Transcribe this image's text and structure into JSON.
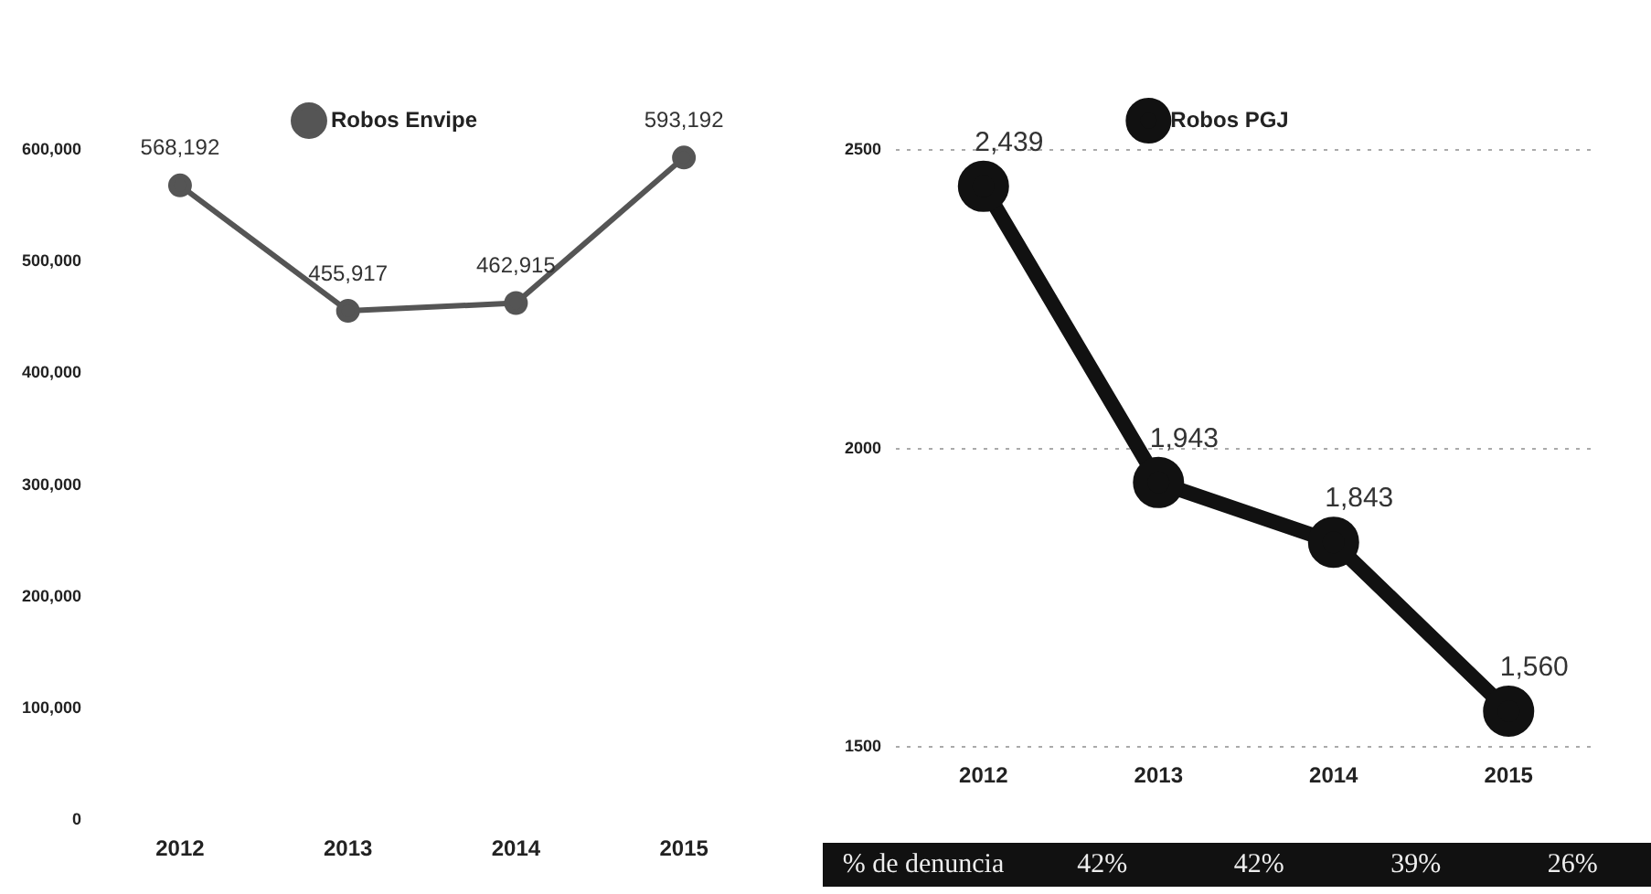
{
  "chart_data": [
    {
      "type": "line",
      "categories": [
        "2012",
        "2013",
        "2014",
        "2015"
      ],
      "series": [
        {
          "name": "Robos Envipe",
          "color": "#555555",
          "values": [
            568192,
            455917,
            462915,
            593192
          ],
          "value_labels": [
            "568,192",
            "455,917",
            "462,915",
            "593,192"
          ]
        }
      ],
      "ylim": [
        0,
        600000
      ],
      "yticks": [
        {
          "value": 0,
          "label": "0"
        },
        {
          "value": 100000,
          "label": "100,000"
        },
        {
          "value": 200000,
          "label": "200,000"
        },
        {
          "value": 300000,
          "label": "300,000"
        },
        {
          "value": 400000,
          "label": "400,000"
        },
        {
          "value": 500000,
          "label": "500,000"
        },
        {
          "value": 600000,
          "label": "600,000"
        }
      ],
      "grid": false,
      "legend": "top",
      "marker": "circle",
      "line_style": "solid"
    },
    {
      "type": "line",
      "categories": [
        "2012",
        "2013",
        "2014",
        "2015"
      ],
      "series": [
        {
          "name": "Robos PGJ",
          "color": "#111111",
          "values": [
            2439,
            1943,
            1843,
            1560
          ],
          "value_labels": [
            "2,439",
            "1,943",
            "1,843",
            "1,560"
          ]
        }
      ],
      "ylim": [
        1500,
        2500
      ],
      "yticks": [
        1500,
        2000,
        2500
      ],
      "grid": "y",
      "legend": "top",
      "marker": "circle",
      "line_style": "solid",
      "annotations": [
        "% de denuncia",
        "42%",
        "42%",
        "39%",
        "26%"
      ]
    }
  ]
}
